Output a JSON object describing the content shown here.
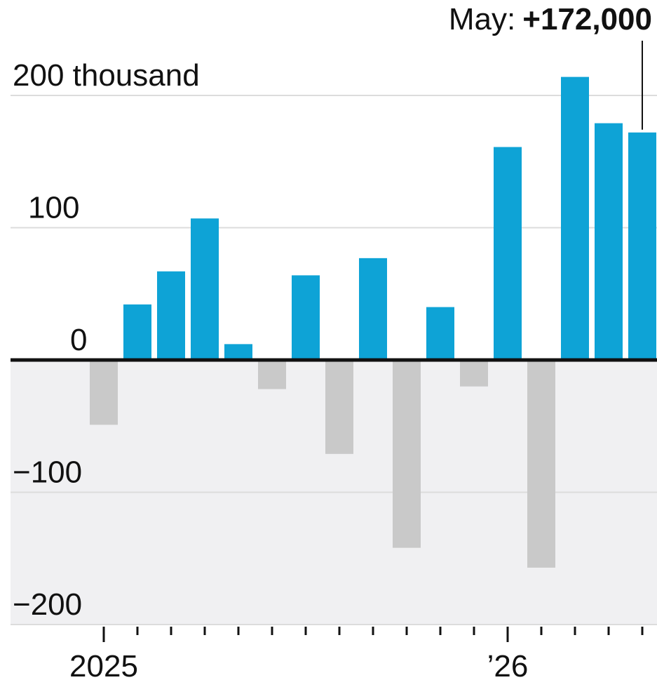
{
  "chart_data": {
    "type": "bar",
    "annotation": "May:",
    "categories": [
      "2025",
      null,
      null,
      null,
      null,
      null,
      null,
      null,
      null,
      null,
      null,
      null,
      "’26",
      null,
      null,
      null,
      null
    ],
    "values": [
      -49,
      42,
      67,
      107,
      12,
      -22,
      64,
      -71,
      77,
      -142,
      40,
      -20,
      161,
      -157,
      214,
      179,
      172
    ],
    "value_labels": [
      null,
      null,
      null,
      null,
      null,
      null,
      null,
      null,
      null,
      null,
      null,
      null,
      null,
      null,
      null,
      null,
      "+172,000"
    ],
    "colors": {
      "positive": "#0ea3d6",
      "negative": "#c9c9c9"
    },
    "ylim": [
      -200,
      200
    ],
    "yticks": [
      {
        "value": -200,
        "label": "−200"
      },
      {
        "value": -100,
        "label": "−100"
      },
      0,
      100,
      {
        "value": 200,
        "label": "200 thousand"
      }
    ],
    "grid": true
  }
}
